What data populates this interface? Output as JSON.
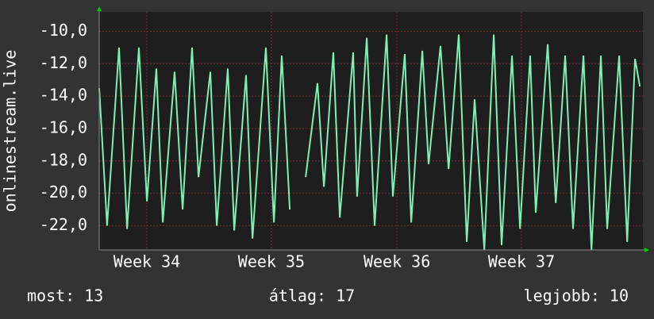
{
  "chart_data": {
    "type": "line",
    "ylabel": "onlinestream.live",
    "x": [
      0,
      0.44,
      1.11,
      1.56,
      2.22,
      2.67,
      3.2,
      3.56,
      4.22,
      4.67,
      5.2,
      5.56,
      6.22,
      6.58,
      7.2,
      7.56,
      8.22,
      8.58,
      9.33,
      9.78,
      10.22,
      10.67,
      10.89,
      11.56,
      12.22,
      12.58,
      13.11,
      13.47,
      14.22,
      14.44,
      14.98,
      15.42,
      16.09,
      16.44,
      17.11,
      17.47,
      18.09,
      18.44,
      19.11,
      19.56,
      20.13,
      20.58,
      21.02,
      21.56,
      22.09,
      22.53,
      23.11,
      23.56,
      24.13,
      24.44,
      25.11,
      25.56,
      26.09,
      26.53,
      27.11,
      27.56,
      28.09,
      28.44,
      29.11,
      29.56,
      30,
      30.27
    ],
    "series": [
      {
        "name": "onlinestream.live",
        "color": "#7ff0b4",
        "values": [
          -13.5,
          -22,
          -11,
          -22.2,
          -11,
          -20.5,
          -12.3,
          -21.8,
          -12.5,
          -21,
          -11,
          -19,
          -12.5,
          -22,
          -12.3,
          -22.3,
          -12.7,
          -22.8,
          -11,
          -21.8,
          -11.5,
          -21,
          null,
          -19,
          -13.2,
          -19.6,
          -11.3,
          -21.5,
          -11.3,
          -20.2,
          -10.4,
          -22,
          -10.2,
          -20.2,
          -11.4,
          -21.8,
          -11.2,
          -18.2,
          -10.9,
          -18.5,
          -10.2,
          -23,
          -14.2,
          -23.5,
          -10.2,
          -23.2,
          -11.5,
          -22.2,
          -11.5,
          -21.2,
          -10.8,
          -20.6,
          -11.5,
          -22.2,
          -11.5,
          -23.5,
          -11.5,
          -22.2,
          -11.5,
          -23,
          -11.7,
          -13.4
        ]
      }
    ],
    "xlim": [
      0,
      30.44
    ],
    "xticks": [
      {
        "value": 2.67,
        "label": "Week 34"
      },
      {
        "value": 9.64,
        "label": "Week 35"
      },
      {
        "value": 16.67,
        "label": "Week 36"
      },
      {
        "value": 23.64,
        "label": "Week 37"
      }
    ],
    "ylim": [
      -23.5,
      -8.8
    ],
    "yticks": [
      {
        "value": -22,
        "label": "-22,0"
      },
      {
        "value": -20,
        "label": "-20,0"
      },
      {
        "value": -18,
        "label": "-18,0"
      },
      {
        "value": -16,
        "label": "-16,0"
      },
      {
        "value": -14,
        "label": "-14,0"
      },
      {
        "value": -12,
        "label": "-12,0"
      },
      {
        "value": -10,
        "label": "-10,0"
      }
    ],
    "grid": true,
    "footer": [
      "most: 13",
      "átlag: 17",
      "legjobb: 10"
    ]
  }
}
